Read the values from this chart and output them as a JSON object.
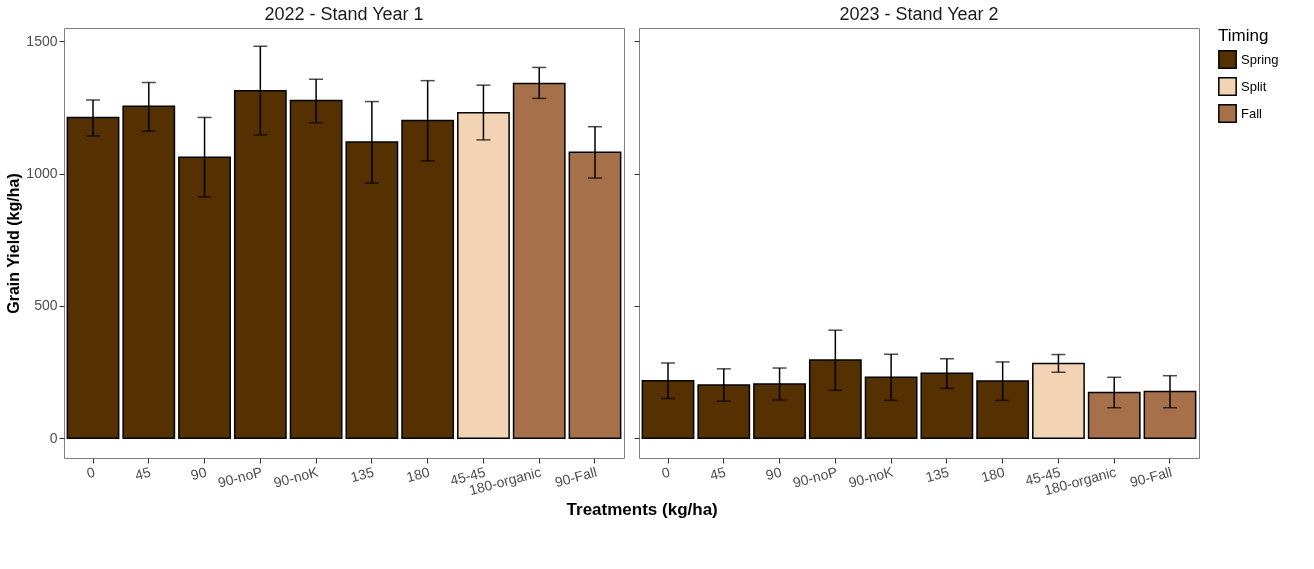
{
  "chart_data": [
    {
      "type": "bar",
      "title": "2022 - Stand Year 1",
      "xlabel": "Treatments (kg/ha)",
      "ylabel": "Grain Yield (kg/ha)",
      "legend_title": "Timing",
      "legend": "right",
      "grid": false,
      "categories": [
        "0",
        "45",
        "90",
        "90-noP",
        "90-noK",
        "135",
        "180",
        "45-45",
        "180-organic",
        "90-Fall"
      ],
      "ylim": [
        -75,
        1550
      ],
      "yticks": [
        0,
        500,
        1000,
        1500
      ],
      "series": [
        {
          "name": "Spring",
          "color": "#553000",
          "values": [
            1212,
            1254,
            1062,
            1313,
            1276,
            1119,
            1200,
            null,
            null,
            null
          ],
          "errors": [
            [
              1142,
              1278
            ],
            [
              1160,
              1344
            ],
            [
              912,
              1212
            ],
            [
              1146,
              1481
            ],
            [
              1192,
              1356
            ],
            [
              964,
              1272
            ],
            [
              1048,
              1351
            ],
            null,
            null,
            null
          ]
        },
        {
          "name": "Split",
          "color": "#f2d3b3",
          "values": [
            null,
            null,
            null,
            null,
            null,
            null,
            null,
            1230,
            null,
            null
          ],
          "errors": [
            null,
            null,
            null,
            null,
            null,
            null,
            null,
            [
              1127,
              1334
            ],
            null,
            null
          ]
        },
        {
          "name": "Fall",
          "color": "#a6714a",
          "values": [
            null,
            null,
            null,
            null,
            null,
            null,
            null,
            null,
            1340,
            1080
          ],
          "errors": [
            null,
            null,
            null,
            null,
            null,
            null,
            null,
            null,
            [
              1284,
              1401
            ],
            [
              983,
              1177
            ]
          ]
        }
      ]
    },
    {
      "type": "bar",
      "title": "2023 - Stand Year 2",
      "grid": false,
      "tick_labels": "x",
      "categories": [
        "0",
        "45",
        "90",
        "90-noP",
        "90-noK",
        "135",
        "180",
        "45-45",
        "180-organic",
        "90-Fall"
      ],
      "ylim": [
        -75,
        1550
      ],
      "yticks": [
        0,
        500,
        1000,
        1500
      ],
      "series": [
        {
          "name": "Spring",
          "color": "#553000",
          "values": [
            217,
            201,
            205,
            295,
            230,
            245,
            216,
            null,
            null,
            null
          ],
          "errors": [
            [
              150,
              284
            ],
            [
              140,
              262
            ],
            [
              144,
              265
            ],
            [
              181,
              408
            ],
            [
              143,
              317
            ],
            [
              188,
              300
            ],
            [
              143,
              288
            ],
            null,
            null,
            null
          ]
        },
        {
          "name": "Split",
          "color": "#f2d3b3",
          "values": [
            null,
            null,
            null,
            null,
            null,
            null,
            null,
            282,
            null,
            null
          ],
          "errors": [
            null,
            null,
            null,
            null,
            null,
            null,
            null,
            [
              249,
              316
            ],
            null,
            null
          ]
        },
        {
          "name": "Fall",
          "color": "#a6714a",
          "values": [
            null,
            null,
            null,
            null,
            null,
            null,
            null,
            null,
            173,
            176
          ],
          "errors": [
            null,
            null,
            null,
            null,
            null,
            null,
            null,
            null,
            [
              115,
              230
            ],
            [
              115,
              236
            ]
          ]
        }
      ]
    }
  ]
}
